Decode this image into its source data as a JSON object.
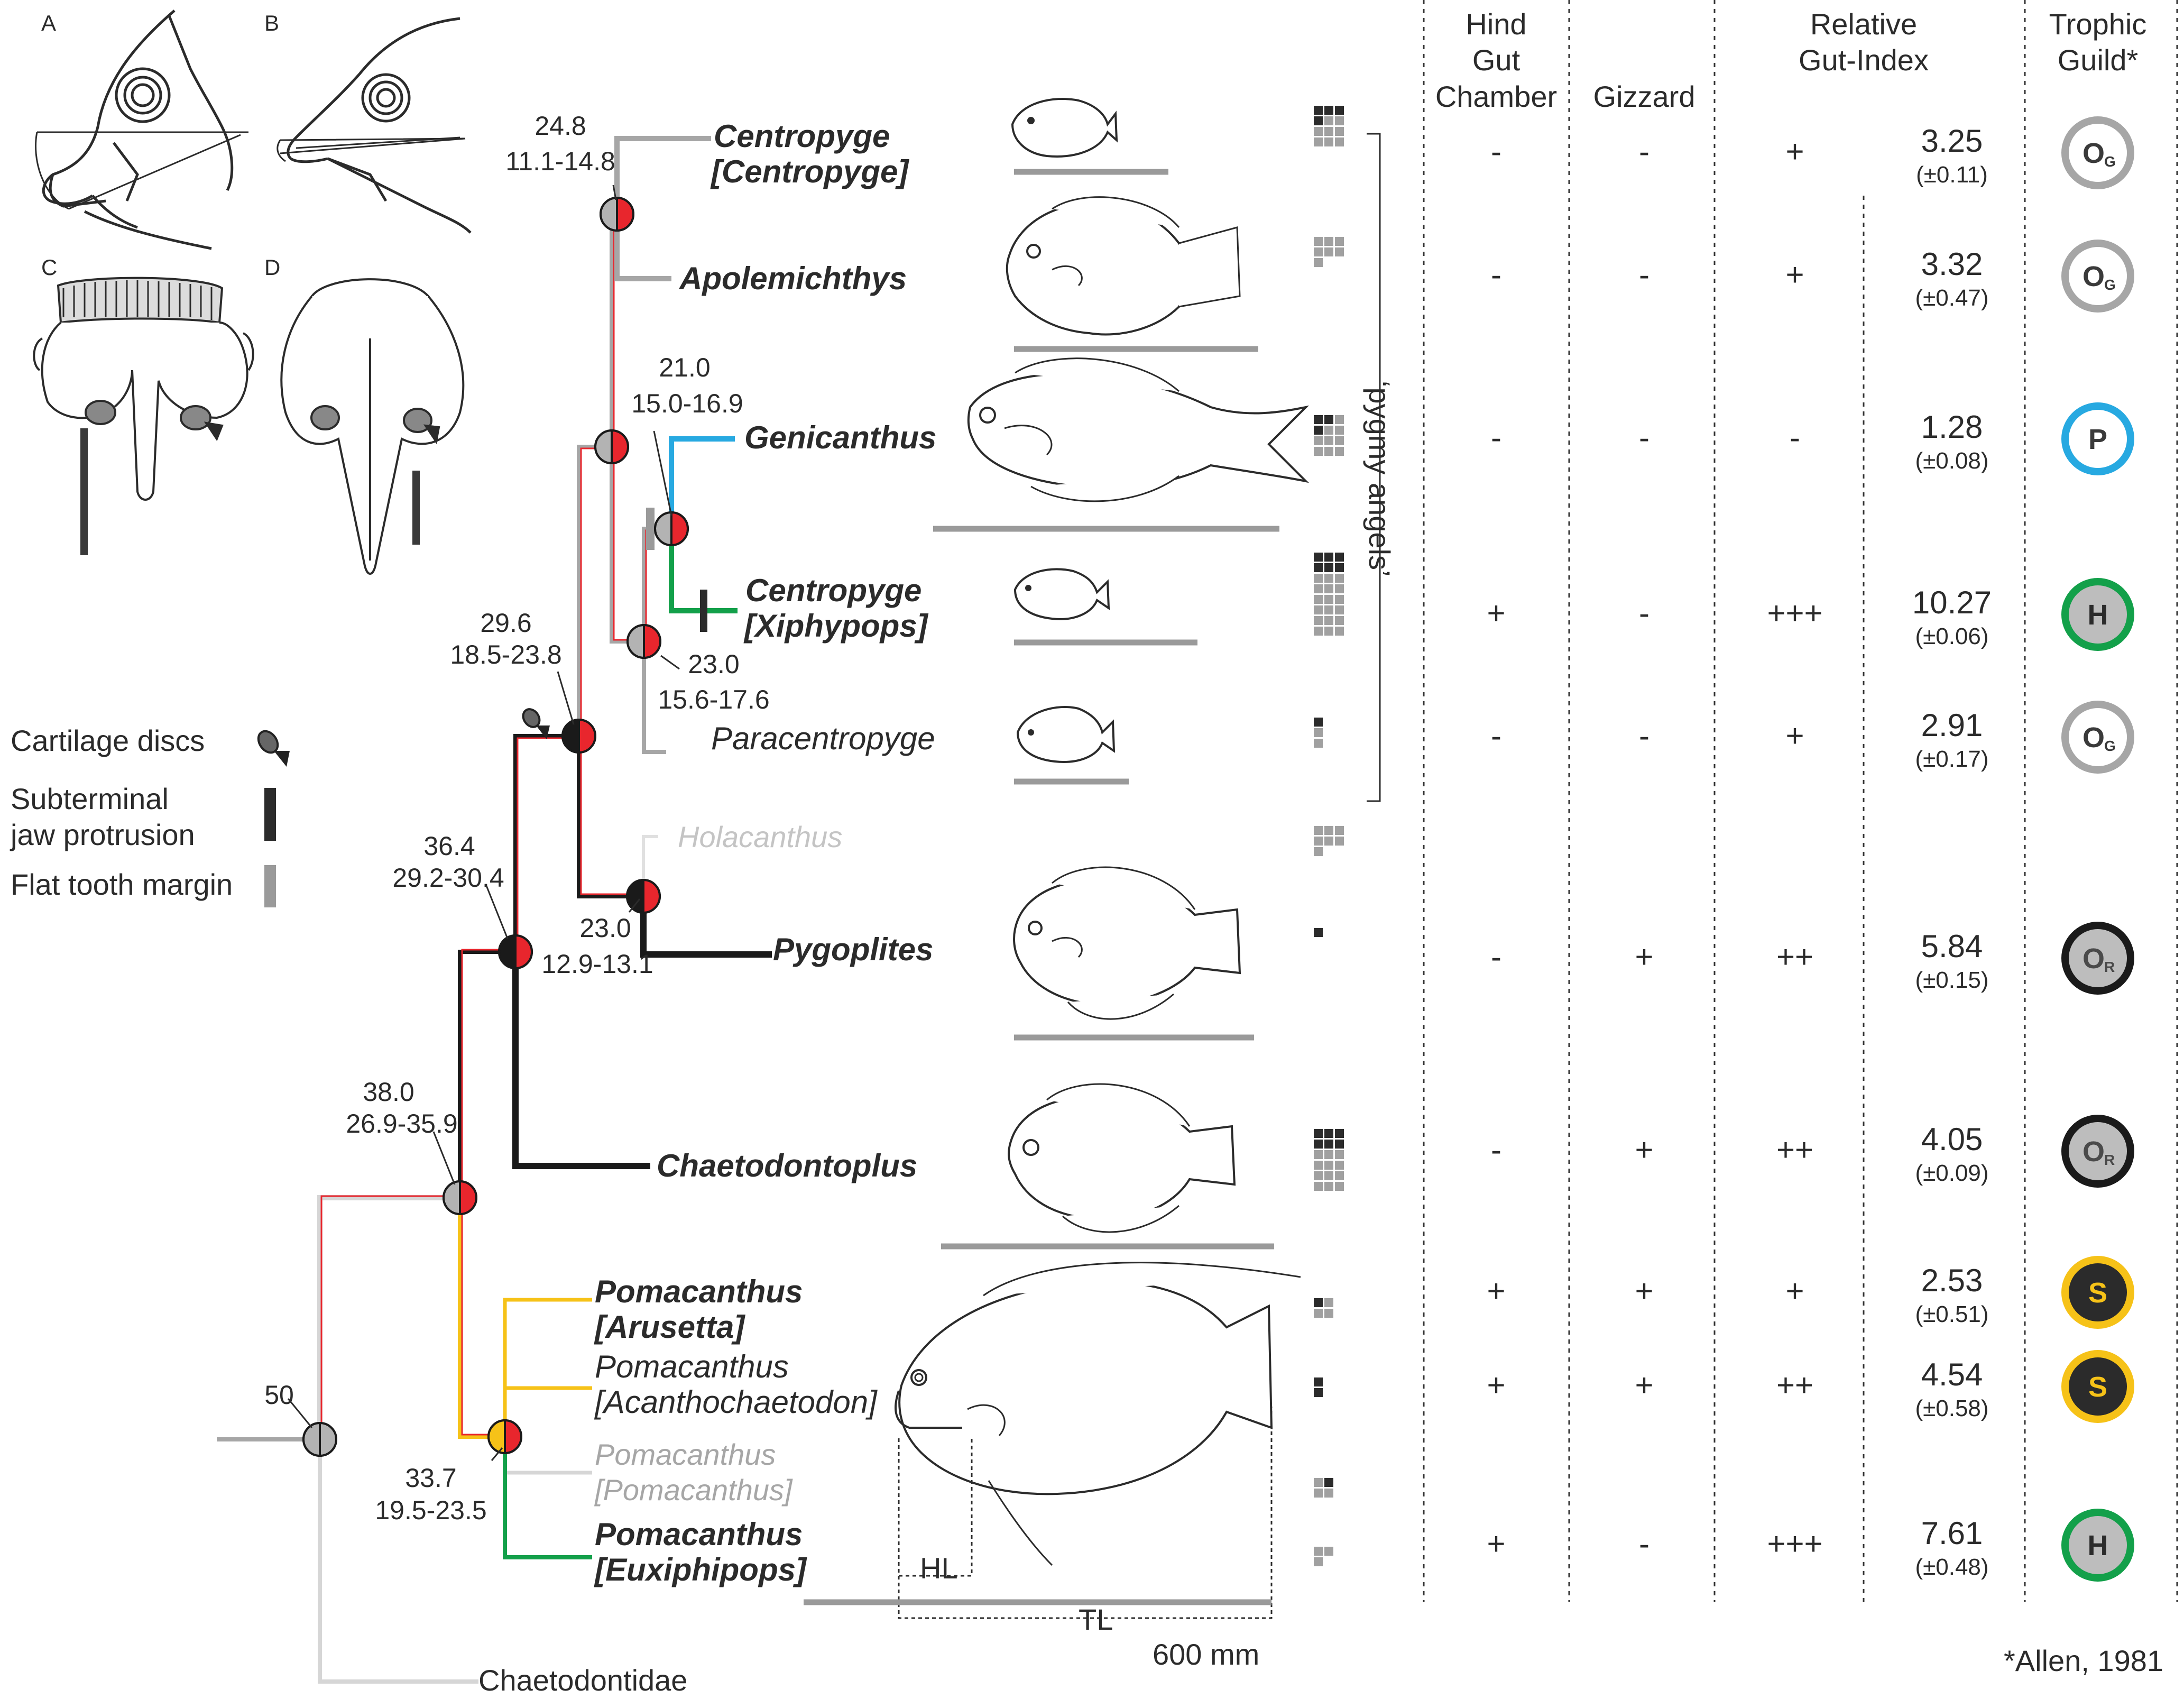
{
  "panel_letters": [
    "A",
    "B",
    "C",
    "D"
  ],
  "legend": {
    "cartilage": "Cartilage discs",
    "subterminal_1": "Subterminal",
    "subterminal_2": "jaw protrusion",
    "flat": "Flat tooth margin"
  },
  "headers": {
    "hind_1": "Hind",
    "hind_2": "Gut",
    "hind_3": "Chamber",
    "gizzard": "Gizzard",
    "rel_1": "Relative",
    "rel_2": "Gut-Index",
    "trophic_1": "Trophic",
    "trophic_2": "Guild*"
  },
  "nodes": {
    "root_age": "50",
    "n38_age": "38.0",
    "n38_range": "26.9-35.9",
    "n364_age": "36.4",
    "n364_range": "29.2-30.4",
    "n296_age": "29.6",
    "n296_range": "18.5-23.8",
    "n248_age": "24.8",
    "n248_range": "11.1-14.8",
    "n210_age": "21.0",
    "n210_range": "15.0-16.9",
    "n230a_age": "23.0",
    "n230a_range": "15.6-17.6",
    "n230b_age": "23.0",
    "n230b_range": "12.9-13.1",
    "n337_age": "33.7",
    "n337_range": "19.5-23.5"
  },
  "taxa": {
    "centropyge_c_1": "Centropyge",
    "centropyge_c_2": "[Centropyge]",
    "apolemichthys": "Apolemichthys",
    "genicanthus": "Genicanthus",
    "centropyge_x_1": "Centropyge",
    "centropyge_x_2": "[Xiphypops]",
    "paracentropyge": "Paracentropyge",
    "holacanthus": "Holacanthus",
    "pygoplites": "Pygoplites",
    "chaetodontoplus": "Chaetodontoplus",
    "arusetta_1": "Pomacanthus",
    "arusetta_2": "[Arusetta]",
    "acantho_1": "Pomacanthus",
    "acantho_2": "[Acanthochaetodon]",
    "pomac_1": "Pomacanthus",
    "pomac_2": "[Pomacanthus]",
    "euxi_1": "Pomacanthus",
    "euxi_2": "[Euxiphipops]",
    "chaetodontidae": "Chaetodontidae"
  },
  "pygmy_label": "‘pygmy angels’",
  "hl": "HL",
  "tl": "TL",
  "scale_label": "600 mm",
  "footnote": "*Allen, 1981",
  "rows": [
    {
      "taxon": "Centropyge [Centropyge]",
      "hind": "-",
      "gizzard": "-",
      "rgi": "+",
      "index": "3.25",
      "sd": "(±0.11)",
      "guild": "O",
      "guild_sub": "G",
      "guild_style": "grey"
    },
    {
      "taxon": "Apolemichthys",
      "hind": "-",
      "gizzard": "-",
      "rgi": "+",
      "index": "3.32",
      "sd": "(±0.47)",
      "guild": "O",
      "guild_sub": "G",
      "guild_style": "grey"
    },
    {
      "taxon": "Genicanthus",
      "hind": "-",
      "gizzard": "-",
      "rgi": "-",
      "index": "1.28",
      "sd": "(±0.08)",
      "guild": "P",
      "guild_sub": "",
      "guild_style": "blue"
    },
    {
      "taxon": "Centropyge [Xiphypops]",
      "hind": "+",
      "gizzard": "-",
      "rgi": "+++",
      "index": "10.27",
      "sd": "(±0.06)",
      "guild": "H",
      "guild_sub": "",
      "guild_style": "green"
    },
    {
      "taxon": "Paracentropyge",
      "hind": "-",
      "gizzard": "-",
      "rgi": "+",
      "index": "2.91",
      "sd": "(±0.17)",
      "guild": "O",
      "guild_sub": "G",
      "guild_style": "grey"
    },
    {
      "taxon": "Pygoplites",
      "hind": "-",
      "gizzard": "+",
      "rgi": "++",
      "index": "5.84",
      "sd": "(±0.15)",
      "guild": "O",
      "guild_sub": "R",
      "guild_style": "black"
    },
    {
      "taxon": "Chaetodontoplus",
      "hind": "-",
      "gizzard": "+",
      "rgi": "++",
      "index": "4.05",
      "sd": "(±0.09)",
      "guild": "O",
      "guild_sub": "R",
      "guild_style": "black"
    },
    {
      "taxon": "Pomacanthus [Arusetta]",
      "hind": "+",
      "gizzard": "+",
      "rgi": "+",
      "index": "2.53",
      "sd": "(±0.51)",
      "guild": "S",
      "guild_sub": "",
      "guild_style": "yellow"
    },
    {
      "taxon": "Pomacanthus [Acanthochaetodon]",
      "hind": "+",
      "gizzard": "+",
      "rgi": "++",
      "index": "4.54",
      "sd": "(±0.58)",
      "guild": "S",
      "guild_sub": "",
      "guild_style": "yellow"
    },
    {
      "taxon": "Pomacanthus [Euxiphipops]",
      "hind": "+",
      "gizzard": "-",
      "rgi": "+++",
      "index": "7.61",
      "sd": "(±0.48)",
      "guild": "H",
      "guild_sub": "",
      "guild_style": "green"
    }
  ],
  "colors": {
    "red": "#e8262d",
    "grey_branch": "#a6a6a6",
    "light_branch": "#d6d6d6",
    "blue": "#27a9e1",
    "green": "#13a04a",
    "yellow": "#f6c218",
    "black": "#1a1a1a"
  }
}
